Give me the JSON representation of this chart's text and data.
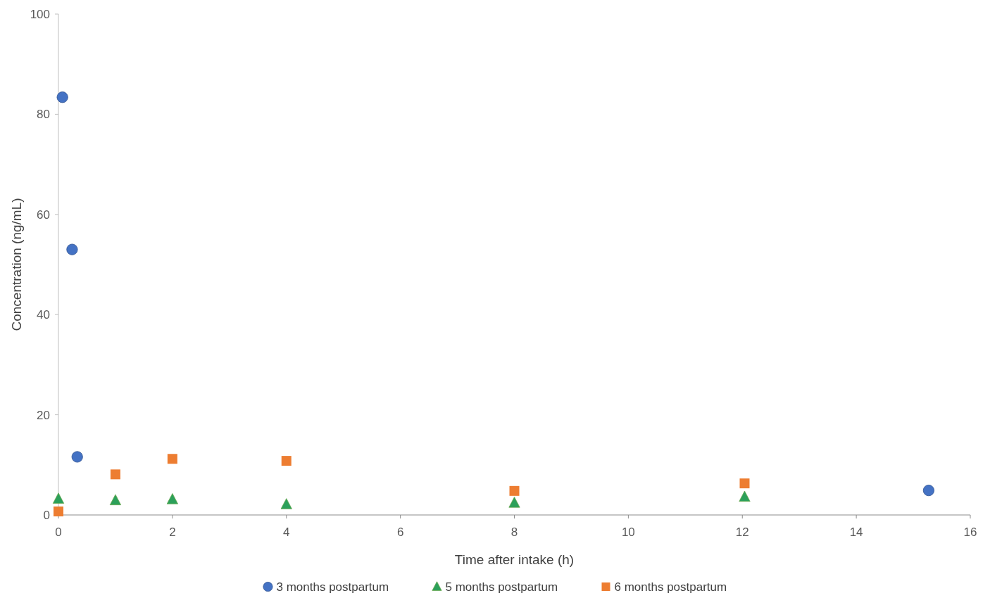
{
  "chart_data": {
    "type": "scatter",
    "xlabel": "Time after intake (h)",
    "ylabel": "Concentration (ng/mL)",
    "xlim": [
      0,
      16
    ],
    "xticks": [
      0,
      2,
      4,
      6,
      8,
      10,
      12,
      14,
      16
    ],
    "ylim": [
      0,
      100
    ],
    "yticks": [
      0,
      20,
      40,
      60,
      80,
      100
    ],
    "grid": false,
    "legend": "bottom",
    "series": [
      {
        "name": "3 months postpartum",
        "color": "#4472c4",
        "marker": "circle",
        "x": [
          0.07,
          0.24,
          0.33,
          15.27
        ],
        "values": [
          83.4,
          53.0,
          11.6,
          4.9
        ]
      },
      {
        "name": "5 months postpartum",
        "color": "#2ca05a",
        "marker": "triangle",
        "x": [
          0,
          1,
          2,
          4,
          8,
          12.04
        ],
        "values": [
          3.2,
          2.9,
          3.1,
          2.1,
          2.4,
          3.6
        ]
      },
      {
        "name": "6 months postpartum",
        "color": "#ed7d31",
        "marker": "square",
        "x": [
          0,
          1,
          2,
          4,
          8,
          12.04
        ],
        "values": [
          0.7,
          8.1,
          11.2,
          10.8,
          4.8,
          6.3
        ]
      }
    ]
  }
}
